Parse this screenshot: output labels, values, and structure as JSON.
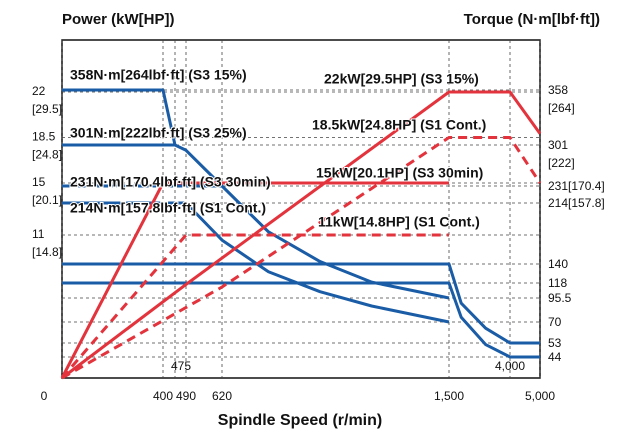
{
  "chart_data": {
    "type": "line",
    "title_left": "Power (kW[HP])",
    "title_right": "Torque (N·m[lbf·ft])",
    "x_label": "Spindle Speed (r/min)",
    "xlim": [
      0,
      5000
    ],
    "xticks": [
      0,
      400,
      475,
      490,
      620,
      {
        "value": 1500,
        "label": "1,500"
      },
      {
        "value": 4000,
        "label": "4,000"
      },
      {
        "value": 5000,
        "label": "5,000"
      }
    ],
    "x_scale": "broken",
    "ylim": [
      0,
      26
    ],
    "yticks": [
      {
        "value": 22,
        "label": "22 [29.5]"
      },
      {
        "value": 18.5,
        "label": "18.5 [24.8]"
      },
      {
        "value": 15,
        "label": "15 [20.1]"
      },
      {
        "value": 11,
        "label": "11 [14.8]"
      }
    ],
    "y2lim": [
      0,
      400
    ],
    "y2ticks": [
      {
        "value": 358,
        "label": "358 [264]"
      },
      {
        "value": 301,
        "label": "301 [222]"
      },
      {
        "value": 231,
        "label": "231[170.4]"
      },
      {
        "value": 214,
        "label": "214[157.8]"
      },
      140,
      118,
      95.5,
      70,
      53,
      44
    ],
    "y2_scale": "broken",
    "grid": true,
    "series": [
      {
        "name": "358N·m[264lbf·ft] (S3 15%)",
        "color": "#1a5ca6",
        "axis": "y2",
        "x": [
          0,
          400,
          475,
          490,
          620,
          800,
          1000,
          1200,
          1500
        ],
        "values": [
          358,
          358,
          301,
          292,
          231,
          179,
          143,
          119,
          95.5
        ]
      },
      {
        "name": "301N·m[222lbf·ft] (S3 25%)",
        "color": "#1a5ca6",
        "axis": "y2",
        "x": [
          0,
          475
        ],
        "values": [
          301,
          301
        ]
      },
      {
        "name": "231N·m[170.4lbf·ft] (S3 30min)",
        "color": "#1a5ca6",
        "axis": "y2",
        "x": [
          0,
          620
        ],
        "values": [
          231,
          231
        ]
      },
      {
        "name": "214N·m[157.8lbf·ft] (S1 Cont.)",
        "color": "#1a5ca6",
        "axis": "y2",
        "x": [
          0,
          490,
          620,
          800,
          1000,
          1200,
          1500
        ],
        "values": [
          214,
          214,
          169,
          131,
          105,
          87,
          70
        ]
      },
      {
        "color": "#1a5ca6",
        "axis": "y2",
        "x": [
          0,
          1500,
          2000,
          3000,
          4000,
          5000
        ],
        "values": [
          140,
          140,
          90,
          65,
          53,
          53
        ]
      },
      {
        "color": "#1a5ca6",
        "axis": "y2",
        "x": [
          0,
          1500,
          2000,
          3000,
          4000,
          5000
        ],
        "values": [
          118,
          118,
          75,
          52,
          44,
          44
        ]
      },
      {
        "name": "22kW[29.5HP] (S3 15%)",
        "color": "#e3333c",
        "x": [
          0,
          490,
          1500,
          4000,
          5000
        ],
        "values": [
          0,
          7.2,
          22,
          22,
          18.8
        ]
      },
      {
        "name": "18.5kW[24.8HP] (S1 Cont.)",
        "color": "#e3333c",
        "dashed": true,
        "x": [
          0,
          620,
          1500,
          4000,
          5000
        ],
        "values": [
          0,
          7,
          18.5,
          18.5,
          15
        ]
      },
      {
        "name": "15kW[20.1HP] (S3 30min)",
        "color": "#e3333c",
        "x": [
          0,
          400,
          1500
        ],
        "values": [
          0,
          15,
          15
        ]
      },
      {
        "name": "11kW[14.8HP] (S1 Cont.)",
        "color": "#e3333c",
        "dashed": true,
        "x": [
          0,
          490,
          1500
        ],
        "values": [
          0,
          11,
          11
        ]
      }
    ]
  }
}
